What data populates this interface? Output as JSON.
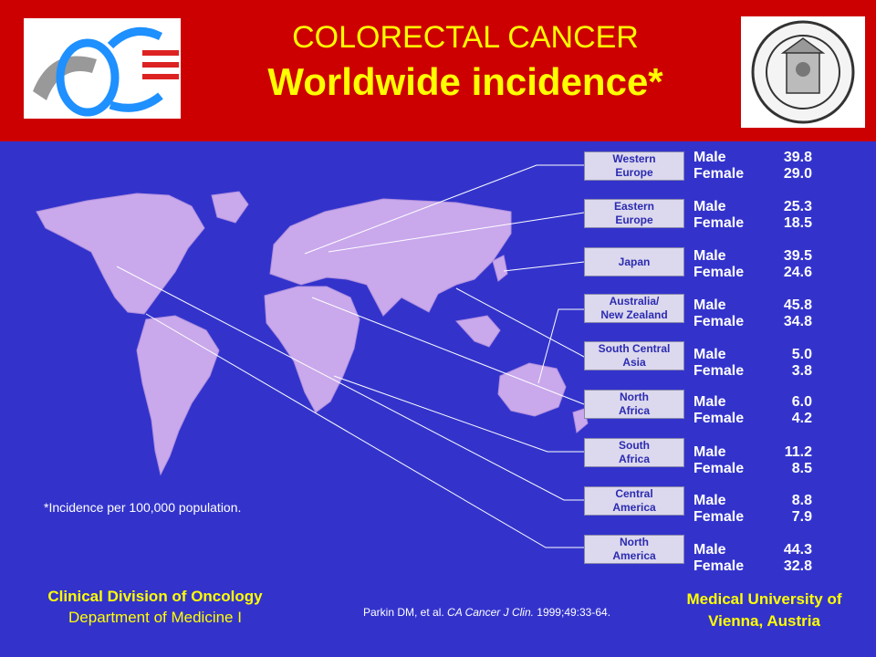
{
  "header": {
    "title_line1": "COLORECTAL CANCER",
    "title_line2": "Worldwide incidence*"
  },
  "regions": [
    {
      "line1": "Western",
      "line2": "Europe",
      "male_label": "Male",
      "male": "39.8",
      "female_label": "Female",
      "female": "29.0"
    },
    {
      "line1": "Eastern",
      "line2": "Europe",
      "male_label": "Male",
      "male": "25.3",
      "female_label": "Female",
      "female": "18.5"
    },
    {
      "line1": "Japan",
      "line2": "",
      "male_label": "Male",
      "male": "39.5",
      "female_label": "Female",
      "female": "24.6"
    },
    {
      "line1": "Australia/",
      "line2": "New Zealand",
      "male_label": "Male",
      "male": "45.8",
      "female_label": "Female",
      "female": "34.8"
    },
    {
      "line1": "South Central",
      "line2": "Asia",
      "male_label": "Male",
      "male": "5.0",
      "female_label": "Female",
      "female": "3.8"
    },
    {
      "line1": "North",
      "line2": "Africa",
      "male_label": "Male",
      "male": "6.0",
      "female_label": "Female",
      "female": "4.2"
    },
    {
      "line1": "South",
      "line2": "Africa",
      "male_label": "Male",
      "male": "11.2",
      "female_label": "Female",
      "female": "8.5"
    },
    {
      "line1": "Central",
      "line2": "America",
      "male_label": "Male",
      "male": "8.8",
      "female_label": "Female",
      "female": "7.9"
    },
    {
      "line1": "North",
      "line2": "America",
      "male_label": "Male",
      "male": "44.3",
      "female_label": "Female",
      "female": "32.8"
    }
  ],
  "footnote": "*Incidence per 100,000 population.",
  "footer_left": {
    "line1": "Clinical Division of Oncology",
    "line2": "Department of Medicine I"
  },
  "citation": {
    "prefix": "Parkin DM, et al. ",
    "journal": "CA Cancer J Clin.",
    "suffix": " 1999;49:33-64."
  },
  "footer_right": {
    "line1": "Medical University of",
    "line2": "Vienna, Austria"
  },
  "colors": {
    "header": "#cc0000",
    "background": "#3333cc",
    "title": "#ffff00",
    "land": "#c9a8ec"
  }
}
